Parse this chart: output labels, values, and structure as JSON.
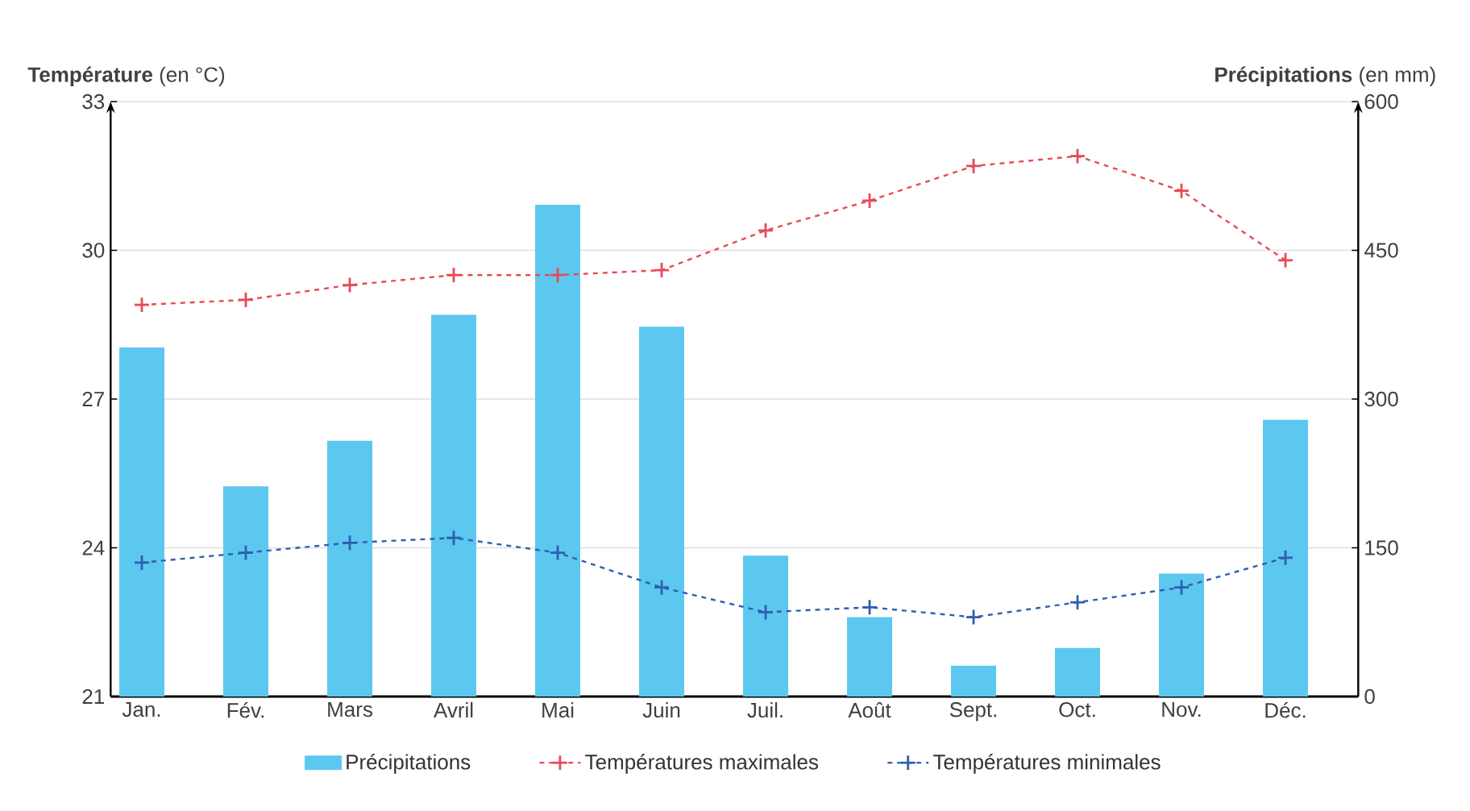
{
  "chart_data": {
    "type": "line",
    "ylabel": "**Température** (en °C)",
    "y2label": "**Précipitations** (en mm)",
    "categories": [
      "Jan.",
      "Fév.",
      "Mars",
      "Avril",
      "Mai",
      "Juin",
      "Juil.",
      "Août",
      "Sept.",
      "Oct.",
      "Nov.",
      "Déc."
    ],
    "series": [
      {
        "name": "Précipitations",
        "type": "bar",
        "axis": "y2",
        "color": "#5cc8f0",
        "values": [
          352,
          212,
          258,
          385,
          496,
          373,
          142,
          80,
          31,
          49,
          124,
          279
        ]
      },
      {
        "name": "Températures maximales",
        "color": "#e84a55",
        "values": [
          28.9,
          29.0,
          29.3,
          29.5,
          29.5,
          29.6,
          30.4,
          31.0,
          31.7,
          31.9,
          31.2,
          29.8
        ]
      },
      {
        "name": "Températures minimales",
        "color": "#2f5fb0",
        "values": [
          23.7,
          23.9,
          24.1,
          24.2,
          23.9,
          23.2,
          22.7,
          22.8,
          22.6,
          22.9,
          23.2,
          23.8
        ]
      }
    ],
    "ylim": [
      21,
      33
    ],
    "yticks": [
      21,
      24,
      27,
      30,
      33
    ],
    "y2lim": [
      0,
      600
    ],
    "y2ticks": [
      0,
      150,
      300,
      450,
      600
    ],
    "grid": "y",
    "legend": "bottom",
    "marker": "cross",
    "line_style": "dashed"
  }
}
